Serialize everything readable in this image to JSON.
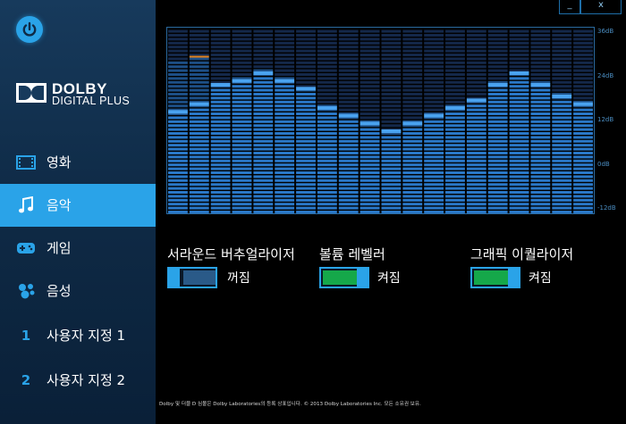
{
  "brand": {
    "name": "DOLBY",
    "sub": "DIGITAL PLUS"
  },
  "window": {
    "minimize_label": "_",
    "close_label": "x"
  },
  "nav": [
    {
      "label": "영화",
      "icon": "film-icon",
      "active": false
    },
    {
      "label": "음악",
      "icon": "music-note-icon",
      "active": true
    },
    {
      "label": "게임",
      "icon": "gamepad-icon",
      "active": false
    },
    {
      "label": "음성",
      "icon": "voice-chat-icon",
      "active": false
    },
    {
      "label": "사용자 지정 1",
      "number": "1",
      "active": false
    },
    {
      "label": "사용자 지정 2",
      "number": "2",
      "active": false
    }
  ],
  "equalizer": {
    "db_labels": [
      "36dB",
      "24dB",
      "12dB",
      "0dB",
      "-12dB"
    ],
    "range": [
      -12,
      36
    ],
    "bands": [
      {
        "level": 14,
        "peak": 27.5
      },
      {
        "level": 16,
        "peak": 28.5
      },
      {
        "level": 21,
        "peak": 22
      },
      {
        "level": 22,
        "peak": 23.5
      },
      {
        "level": 24,
        "peak": 26
      },
      {
        "level": 22,
        "peak": 23.5
      },
      {
        "level": 20,
        "peak": 20.5
      },
      {
        "level": 15,
        "peak": 16.5
      },
      {
        "level": 13,
        "peak": 14.5
      },
      {
        "level": 11,
        "peak": 12.5
      },
      {
        "level": 9,
        "peak": 10
      },
      {
        "level": 11,
        "peak": 12.5
      },
      {
        "level": 13,
        "peak": 14.5
      },
      {
        "level": 15,
        "peak": 16.5
      },
      {
        "level": 17,
        "peak": 18
      },
      {
        "level": 21,
        "peak": 22.5
      },
      {
        "level": 24,
        "peak": 25
      },
      {
        "level": 21,
        "peak": 22.5
      },
      {
        "level": 18,
        "peak": 20
      },
      {
        "level": 16,
        "peak": 17.5
      }
    ],
    "colors": {
      "bar": "#2a78c8",
      "peak_highlight": "#4aa3f0",
      "orange_peak": "#e0821e",
      "background_grid": "#14284a"
    }
  },
  "controls": [
    {
      "label": "서라운드 버추얼라이저",
      "state": "꺼짐",
      "on": false
    },
    {
      "label": "볼륨 레벨러",
      "state": "켜짐",
      "on": true
    },
    {
      "label": "그래픽 이퀄라이저",
      "state": "켜짐",
      "on": true
    }
  ],
  "footer": "Dolby 및 더블 D 심볼은 Dolby Laboratories의 등록 상표입니다. © 2013 Dolby Laboratories Inc. 모든 소유권 보유."
}
